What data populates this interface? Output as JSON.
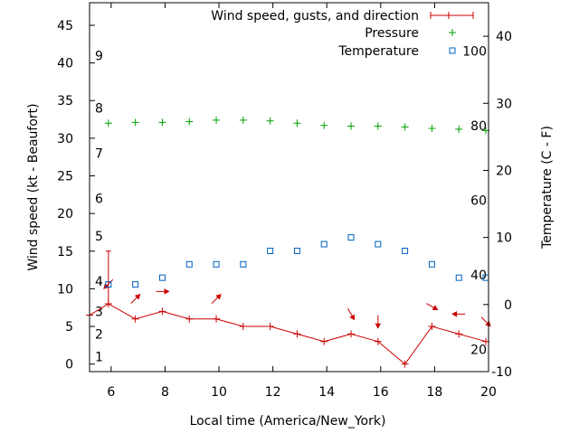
{
  "chart_data": {
    "type": "line",
    "title": "",
    "xlabel": "Local time (America/New_York)",
    "ylabel_left": "Wind speed (kt - Beaufort)",
    "ylabel_right": "Temperature (C - F)",
    "xlim": [
      5.2,
      20
    ],
    "ylim_left": [
      -1,
      48
    ],
    "ylim_right": [
      -10,
      45
    ],
    "x_ticks": [
      6,
      8,
      10,
      12,
      14,
      16,
      18,
      20
    ],
    "y_left_ticks": [
      0,
      5,
      10,
      15,
      20,
      25,
      30,
      35,
      40,
      45
    ],
    "y_right_ticks": [
      -10,
      0,
      10,
      20,
      30,
      40
    ],
    "beaufort_labels": [
      {
        "label": "1",
        "kt": 1
      },
      {
        "label": "2",
        "kt": 4
      },
      {
        "label": "3",
        "kt": 7
      },
      {
        "label": "4",
        "kt": 11
      },
      {
        "label": "5",
        "kt": 17
      },
      {
        "label": "6",
        "kt": 22
      },
      {
        "label": "7",
        "kt": 28
      },
      {
        "label": "8",
        "kt": 34
      },
      {
        "label": "9",
        "kt": 41
      }
    ],
    "fahrenheit_labels": [
      {
        "label": "20",
        "c": -6.67
      },
      {
        "label": "40",
        "c": 4.44
      },
      {
        "label": "60",
        "c": 15.56
      },
      {
        "label": "80",
        "c": 26.67
      },
      {
        "label": "100",
        "c": 37.78
      }
    ],
    "legend_position": "top-right",
    "series": [
      {
        "name": "Wind speed, gusts, and direction",
        "color": "#cc0000",
        "x": [
          5.2,
          5.9,
          6.9,
          7.9,
          8.9,
          9.9,
          10.9,
          11.9,
          12.9,
          13.9,
          14.9,
          15.9,
          16.9,
          17.9,
          18.9,
          19.9
        ],
        "values": [
          6.5,
          8,
          6,
          7,
          6,
          6,
          5,
          5,
          4,
          3,
          4,
          3,
          0,
          5,
          4,
          3
        ],
        "gusts": [
          {
            "x": 5.9,
            "value": 15
          }
        ],
        "directions_x": [
          5.9,
          6.9,
          7.9,
          9.9,
          14.9,
          15.9,
          17.9,
          18.9,
          19.9
        ],
        "directions_deg": [
          45,
          225,
          270,
          225,
          330,
          0,
          300,
          90,
          315
        ]
      },
      {
        "name": "Pressure",
        "color": "#00a000",
        "x": [
          5.9,
          6.9,
          7.9,
          8.9,
          9.9,
          10.9,
          11.9,
          12.9,
          13.9,
          14.9,
          15.9,
          16.9,
          17.9,
          18.9,
          19.9
        ],
        "values": [
          32,
          32.1,
          32.1,
          32.2,
          32.4,
          32.4,
          32.3,
          32,
          31.7,
          31.6,
          31.6,
          31.5,
          31.3,
          31.2,
          31
        ]
      },
      {
        "name": "Temperature",
        "color": "#0060c0",
        "x": [
          5.9,
          6.9,
          7.9,
          8.9,
          9.9,
          10.9,
          11.9,
          12.9,
          13.9,
          14.9,
          15.9,
          16.9,
          17.9,
          18.9,
          19.9
        ],
        "values": [
          3,
          3,
          4,
          6,
          6,
          6,
          8,
          8,
          9,
          10,
          9,
          8,
          6,
          4,
          4
        ]
      }
    ]
  }
}
